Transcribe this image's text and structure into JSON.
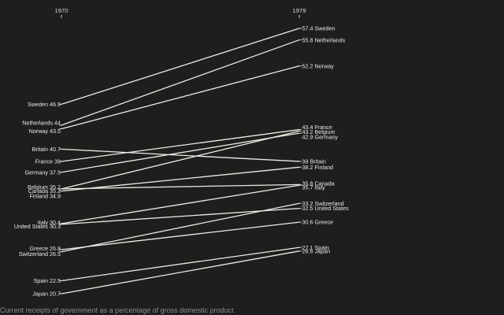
{
  "chart_data": {
    "type": "slope",
    "x_labels": [
      "1970",
      "1979"
    ],
    "caption": "Current receipts of government as a percentage of gross domestic product",
    "ylim": [
      20,
      58
    ],
    "series": [
      {
        "name": "Sweden",
        "values": [
          46.9,
          57.4
        ],
        "label_1970": "Sweden 46.9",
        "label_1979": "57.4 Sweden"
      },
      {
        "name": "Netherlands",
        "values": [
          44,
          55.8
        ],
        "label_1970": "Netherlands 44",
        "label_1979": "55.8 Netherlands"
      },
      {
        "name": "Norway",
        "values": [
          43.5,
          52.2
        ],
        "label_1970": "Norway 43.5",
        "label_1979": "52.2 Norway"
      },
      {
        "name": "Britain",
        "values": [
          40.7,
          39
        ],
        "label_1970": "Britain 40.7",
        "label_1979": "39 Britain"
      },
      {
        "name": "France",
        "values": [
          39,
          43.4
        ],
        "label_1970": "France 39",
        "label_1979": "43.4 France"
      },
      {
        "name": "Germany",
        "values": [
          37.5,
          42.9
        ],
        "label_1970": "Germany 37.5",
        "label_1979": "42.9 Germany"
      },
      {
        "name": "Belgium",
        "values": [
          35.2,
          43.2
        ],
        "label_1970": "Belgium 35.2",
        "label_1979": "43.2 Belgium"
      },
      {
        "name": "Canada",
        "values": [
          35.2,
          35.8
        ],
        "label_1970": "Canada 35.2",
        "label_1979": "35.8 Canada"
      },
      {
        "name": "Finland",
        "values": [
          34.9,
          38.2
        ],
        "label_1970": "Finland 34.9",
        "label_1979": "38.2 Finland"
      },
      {
        "name": "Italy",
        "values": [
          30.4,
          35.7
        ],
        "label_1970": "Italy 30.4",
        "label_1979": "35.7 Italy"
      },
      {
        "name": "United States",
        "values": [
          30.3,
          32.5
        ],
        "label_1970": "United States 30.3",
        "label_1979": "32.5 United States"
      },
      {
        "name": "Greece",
        "values": [
          26.8,
          30.6
        ],
        "label_1970": "Greece 26.8",
        "label_1979": "30.6 Greece"
      },
      {
        "name": "Switzerland",
        "values": [
          26.5,
          33.2
        ],
        "label_1970": "Switzerland 26.5",
        "label_1979": "33.2 Switzerland"
      },
      {
        "name": "Spain",
        "values": [
          22.5,
          27.1
        ],
        "label_1970": "Spain 22.5",
        "label_1979": "27.1 Spain"
      },
      {
        "name": "Japan",
        "values": [
          20.7,
          26.6
        ],
        "label_1970": "Japan 20.7",
        "label_1979": "26.6 Japan"
      }
    ]
  }
}
